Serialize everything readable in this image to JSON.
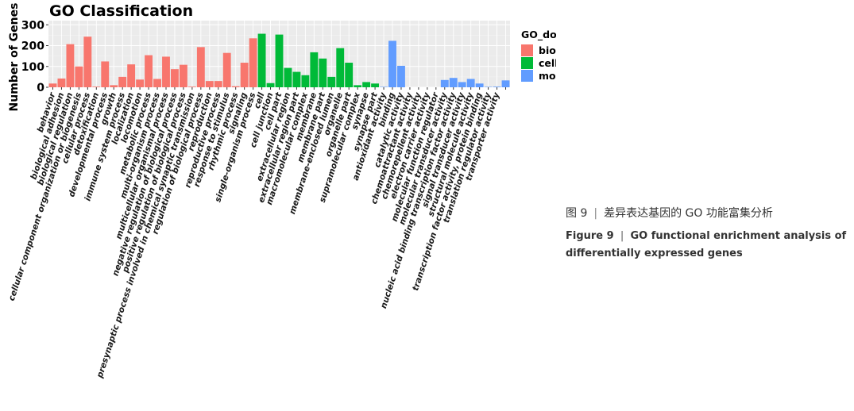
{
  "chart_data": {
    "type": "bar",
    "title": "GO Classification",
    "xlabel": "",
    "ylabel": "Number of Genes",
    "ylim": [
      0,
      320
    ],
    "yticks": [
      0,
      100,
      200,
      300
    ],
    "grid": true,
    "legend_title": "GO_domain",
    "legend_position": "right",
    "domains": [
      {
        "name": "biological_process",
        "color": "#F8766D"
      },
      {
        "name": "cellular_component",
        "color": "#00BA38"
      },
      {
        "name": "molecular_function",
        "color": "#619CFF"
      }
    ],
    "categories": [
      {
        "label": "behavior",
        "domain": 0,
        "value": 18
      },
      {
        "label": "biological adhesion",
        "domain": 0,
        "value": 42
      },
      {
        "label": "biological regulation",
        "domain": 0,
        "value": 207
      },
      {
        "label": "cellular component organization or biogenesis",
        "domain": 0,
        "value": 100
      },
      {
        "label": "cellular process",
        "domain": 0,
        "value": 243
      },
      {
        "label": "detoxification",
        "domain": 0,
        "value": 3
      },
      {
        "label": "developmental process",
        "domain": 0,
        "value": 124
      },
      {
        "label": "growth",
        "domain": 0,
        "value": 10
      },
      {
        "label": "immune system process",
        "domain": 0,
        "value": 50
      },
      {
        "label": "localization",
        "domain": 0,
        "value": 110
      },
      {
        "label": "locomotion",
        "domain": 0,
        "value": 37
      },
      {
        "label": "metabolic process",
        "domain": 0,
        "value": 154
      },
      {
        "label": "multi-organism process",
        "domain": 0,
        "value": 40
      },
      {
        "label": "multicellular organismal process",
        "domain": 0,
        "value": 147
      },
      {
        "label": "negative regulation of biological process",
        "domain": 0,
        "value": 87
      },
      {
        "label": "positive regulation of biological process",
        "domain": 0,
        "value": 108
      },
      {
        "label": "presynaptic process involved in chemical synaptic transmission",
        "domain": 0,
        "value": 3
      },
      {
        "label": "regulation of biological process",
        "domain": 0,
        "value": 193
      },
      {
        "label": "reproduction",
        "domain": 0,
        "value": 30
      },
      {
        "label": "reproductive process",
        "domain": 0,
        "value": 30
      },
      {
        "label": "response to stimulus",
        "domain": 0,
        "value": 165
      },
      {
        "label": "rhythmic process",
        "domain": 0,
        "value": 5
      },
      {
        "label": "signaling",
        "domain": 0,
        "value": 118
      },
      {
        "label": "single-organism process",
        "domain": 0,
        "value": 235
      },
      {
        "label": "cell",
        "domain": 1,
        "value": 257
      },
      {
        "label": "cell junction",
        "domain": 1,
        "value": 20
      },
      {
        "label": "cell part",
        "domain": 1,
        "value": 253
      },
      {
        "label": "extracellular region",
        "domain": 1,
        "value": 93
      },
      {
        "label": "extracellular region part",
        "domain": 1,
        "value": 74
      },
      {
        "label": "macromolecular complex",
        "domain": 1,
        "value": 58
      },
      {
        "label": "membrane",
        "domain": 1,
        "value": 168
      },
      {
        "label": "membrane part",
        "domain": 1,
        "value": 138
      },
      {
        "label": "membrane-enclosed lumen",
        "domain": 1,
        "value": 50
      },
      {
        "label": "organelle",
        "domain": 1,
        "value": 188
      },
      {
        "label": "organelle part",
        "domain": 1,
        "value": 118
      },
      {
        "label": "supramolecular complex",
        "domain": 1,
        "value": 10
      },
      {
        "label": "synapse",
        "domain": 1,
        "value": 25
      },
      {
        "label": "synapse part",
        "domain": 1,
        "value": 18
      },
      {
        "label": "antioxidant activity",
        "domain": 2,
        "value": 2
      },
      {
        "label": "binding",
        "domain": 2,
        "value": 223
      },
      {
        "label": "catalytic activity",
        "domain": 2,
        "value": 103
      },
      {
        "label": "chemoattractant activity",
        "domain": 2,
        "value": 0
      },
      {
        "label": "chemorepellent activity",
        "domain": 2,
        "value": 0
      },
      {
        "label": "electron carrier activity",
        "domain": 2,
        "value": 0
      },
      {
        "label": "molecular function regulator",
        "domain": 2,
        "value": 0
      },
      {
        "label": "molecular transducer activity",
        "domain": 2,
        "value": 35
      },
      {
        "label": "nucleic acid binding transcription factor activity",
        "domain": 2,
        "value": 45
      },
      {
        "label": "signal transducer activity",
        "domain": 2,
        "value": 25
      },
      {
        "label": "structural molecule activity",
        "domain": 2,
        "value": 40
      },
      {
        "label": "transcription factor activity, protein binding",
        "domain": 2,
        "value": 18
      },
      {
        "label": "translation regulator activity",
        "domain": 2,
        "value": 2
      },
      {
        "label": "transporter activity",
        "domain": 2,
        "value": 3
      },
      {
        "label": "",
        "domain": 2,
        "value": 33
      }
    ]
  },
  "caption": {
    "cn_prefix": "图 9",
    "cn_text": "差异表达基因的 GO 功能富集分析",
    "en_prefix": "Figure 9",
    "en_text": "GO functional enrichment analysis of differentially expressed genes"
  }
}
